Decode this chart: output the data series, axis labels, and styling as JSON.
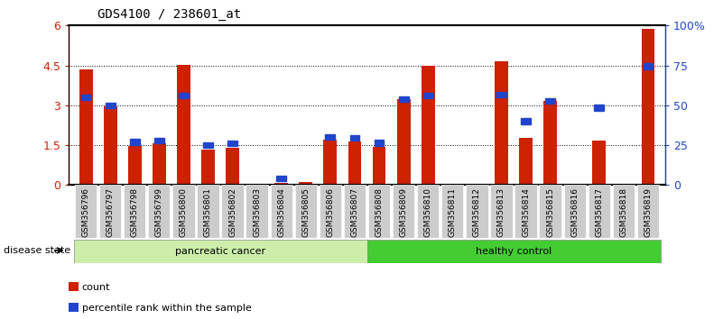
{
  "title": "GDS4100 / 238601_at",
  "samples": [
    "GSM356796",
    "GSM356797",
    "GSM356798",
    "GSM356799",
    "GSM356800",
    "GSM356801",
    "GSM356802",
    "GSM356803",
    "GSM356804",
    "GSM356805",
    "GSM356806",
    "GSM356807",
    "GSM356808",
    "GSM356809",
    "GSM356810",
    "GSM356811",
    "GSM356812",
    "GSM356813",
    "GSM356814",
    "GSM356815",
    "GSM356816",
    "GSM356817",
    "GSM356818",
    "GSM356819"
  ],
  "count_values": [
    4.35,
    2.97,
    1.48,
    1.57,
    4.53,
    1.33,
    1.41,
    0.02,
    0.07,
    0.1,
    1.7,
    1.65,
    1.44,
    3.22,
    4.47,
    0.02,
    0.02,
    4.65,
    1.78,
    3.15,
    0.02,
    1.66,
    0.02,
    5.88
  ],
  "percentile_values": [
    55.0,
    50.0,
    27.0,
    28.0,
    56.0,
    25.0,
    26.0,
    0.0,
    4.0,
    0.0,
    30.0,
    29.5,
    26.5,
    54.0,
    56.0,
    0.0,
    0.0,
    56.5,
    40.0,
    52.5,
    0.0,
    48.5,
    0.0,
    74.5
  ],
  "count_color": "#cc2200",
  "percentile_color": "#2244cc",
  "ylim_left": [
    0,
    6
  ],
  "ylim_right": [
    0,
    100
  ],
  "yticks_left": [
    0,
    1.5,
    3.0,
    4.5,
    6.0
  ],
  "ytick_labels_left": [
    "0",
    "1.5",
    "3",
    "4.5",
    "6"
  ],
  "yticks_right": [
    0,
    25,
    50,
    75,
    100
  ],
  "ytick_labels_right": [
    "0",
    "25",
    "50",
    "75",
    "100%"
  ],
  "disease_groups": [
    {
      "label": "pancreatic cancer",
      "start": 0,
      "end": 12,
      "color": "#cceeaa"
    },
    {
      "label": "healthy control",
      "start": 12,
      "end": 24,
      "color": "#44cc33"
    }
  ],
  "disease_state_label": "disease state",
  "legend_items": [
    {
      "label": "count",
      "color": "#cc2200"
    },
    {
      "label": "percentile rank within the sample",
      "color": "#2244cc"
    }
  ],
  "background_color": "#ffffff",
  "tick_label_fontsize": 6.5,
  "title_fontsize": 10,
  "xlabel_box_color": "#cccccc"
}
